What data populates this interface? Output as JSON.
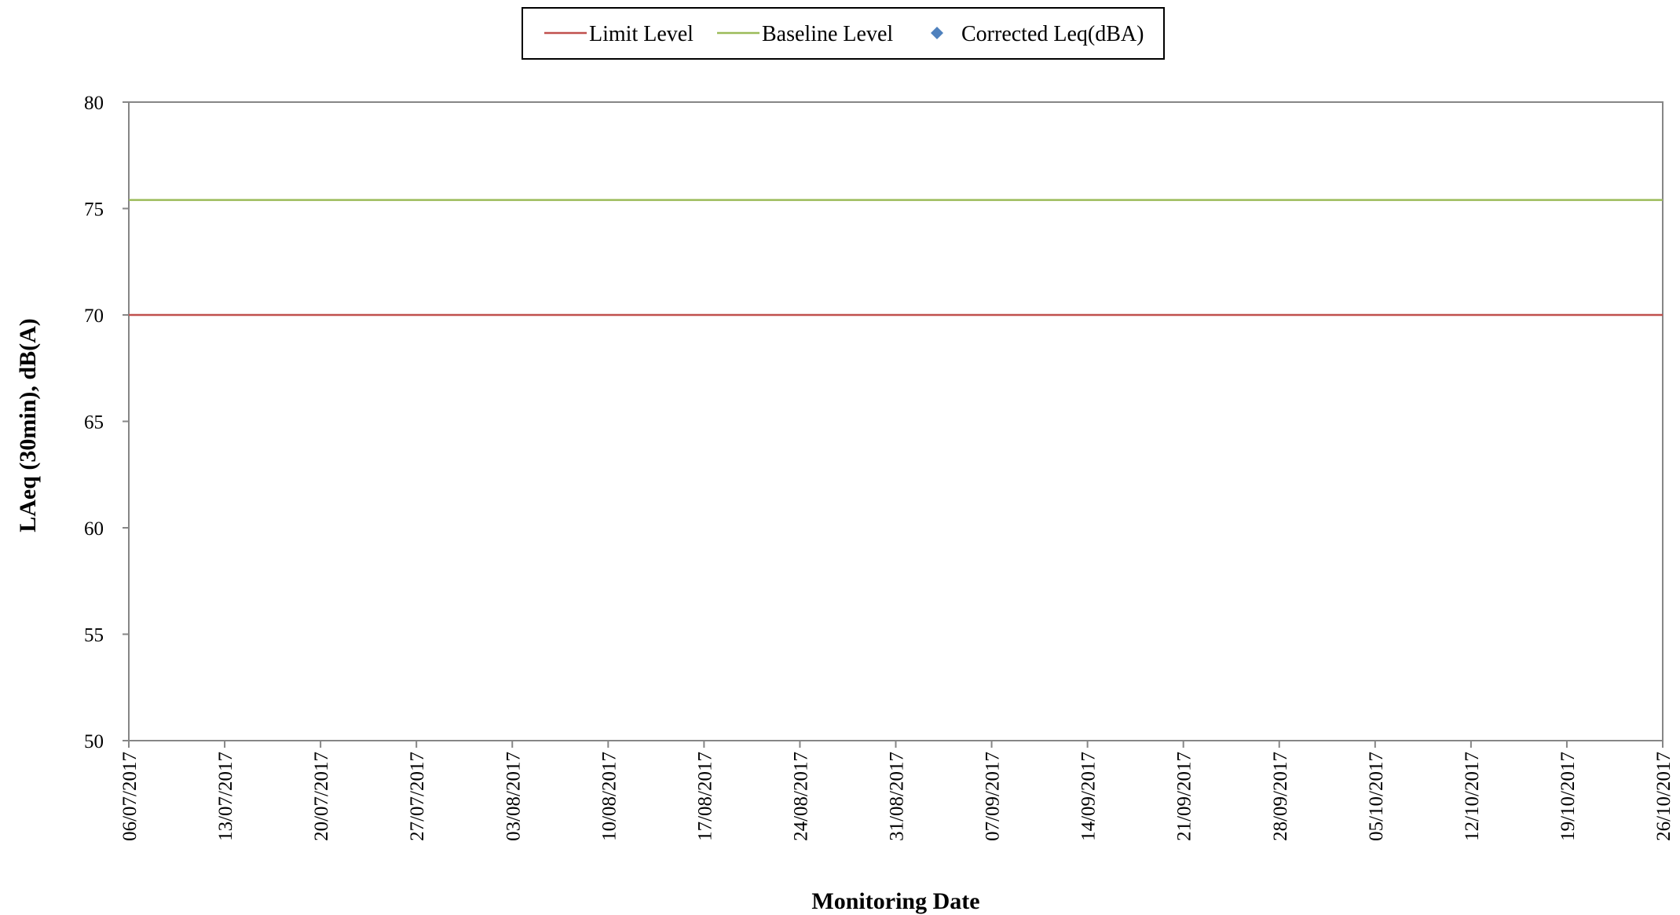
{
  "chart_data": {
    "type": "line",
    "title": "",
    "xlabel": "Monitoring Date",
    "ylabel": "LAeq (30min), dB(A)",
    "ylim": [
      50,
      80
    ],
    "y_ticks": [
      "50",
      "55",
      "60",
      "65",
      "70",
      "75",
      "80"
    ],
    "xlim": [
      "06/07/2017",
      "26/10/2017"
    ],
    "x_ticks": [
      "06/07/2017",
      "13/07/2017",
      "20/07/2017",
      "27/07/2017",
      "03/08/2017",
      "10/08/2017",
      "17/08/2017",
      "24/08/2017",
      "31/08/2017",
      "07/09/2017",
      "14/09/2017",
      "21/09/2017",
      "28/09/2017",
      "05/10/2017",
      "12/10/2017",
      "19/10/2017",
      "26/10/2017"
    ],
    "grid": false,
    "legend_position": "top-center",
    "series": [
      {
        "name": "Limit Level",
        "kind": "line",
        "color": "#c0504d",
        "x": [
          "06/07/2017",
          "26/10/2017"
        ],
        "values": [
          70,
          70
        ]
      },
      {
        "name": "Baseline Level",
        "kind": "line",
        "color": "#9bbb59",
        "x": [
          "06/07/2017",
          "26/10/2017"
        ],
        "values": [
          75.4,
          75.4
        ]
      },
      {
        "name": "Corrected Leq(dBA)",
        "kind": "scatter",
        "marker": "diamond",
        "color": "#4f81bd",
        "x": [],
        "values": []
      }
    ]
  }
}
